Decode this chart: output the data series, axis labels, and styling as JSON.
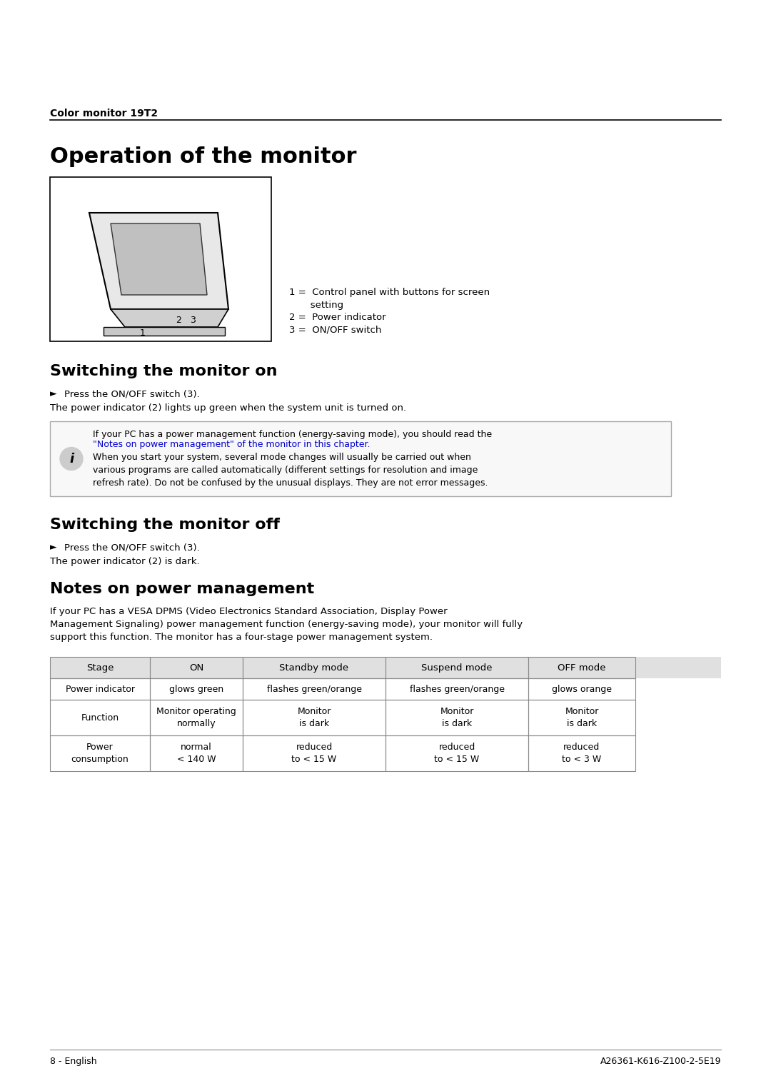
{
  "bg_color": "#ffffff",
  "header_label": "Color monitor 19T2",
  "main_title": "Operation of the monitor",
  "section1_title": "Switching the monitor on",
  "section2_title": "Switching the monitor off",
  "section3_title": "Notes on power management",
  "bullet_char": "►",
  "section1_bullet": "Press the ON/OFF switch (3).",
  "section1_body": "The power indicator (2) lights up green when the system unit is turned on.",
  "info_box_text1": "If your PC has a power management function (energy-saving mode), you should read the",
  "info_box_link": "\"Notes on power management\"",
  "info_box_text1b": " of the monitor in this chapter.",
  "info_box_text2": "When you start your system, several mode changes will usually be carried out when\nvarious programs are called automatically (different settings for resolution and image\nrefresh rate). Do not be confused by the unusual displays. They are not error messages.",
  "section2_bullet": "Press the ON/OFF switch (3).",
  "section2_body": "The power indicator (2) is dark.",
  "section3_body": "If your PC has a VESA DPMS (Video Electronics Standard Association, Display Power\nManagement Signaling) power management function (energy-saving mode), your monitor will fully\nsupport this function. The monitor has a four-stage power management system.",
  "legend1": "1 =  Control panel with buttons for screen\n       setting",
  "legend2": "2 =  Power indicator",
  "legend3": "3 =  ON/OFF switch",
  "table_headers": [
    "Stage",
    "ON",
    "Standby mode",
    "Suspend mode",
    "OFF mode"
  ],
  "table_row1": [
    "Power indicator",
    "glows green",
    "flashes green/orange",
    "flashes green/orange",
    "glows orange"
  ],
  "table_row2": [
    "Function",
    "Monitor operating\nnormally",
    "Monitor\nis dark",
    "Monitor\nis dark",
    "Monitor\nis dark"
  ],
  "table_row3": [
    "Power\nconsumption",
    "normal\n< 140 W",
    "reduced\nto < 15 W",
    "reduced\nto < 15 W",
    "reduced\nto < 3 W"
  ],
  "footer_left": "8 - English",
  "footer_right": "A26361-K616-Z100-2-5E19",
  "link_color": "#0000cc"
}
